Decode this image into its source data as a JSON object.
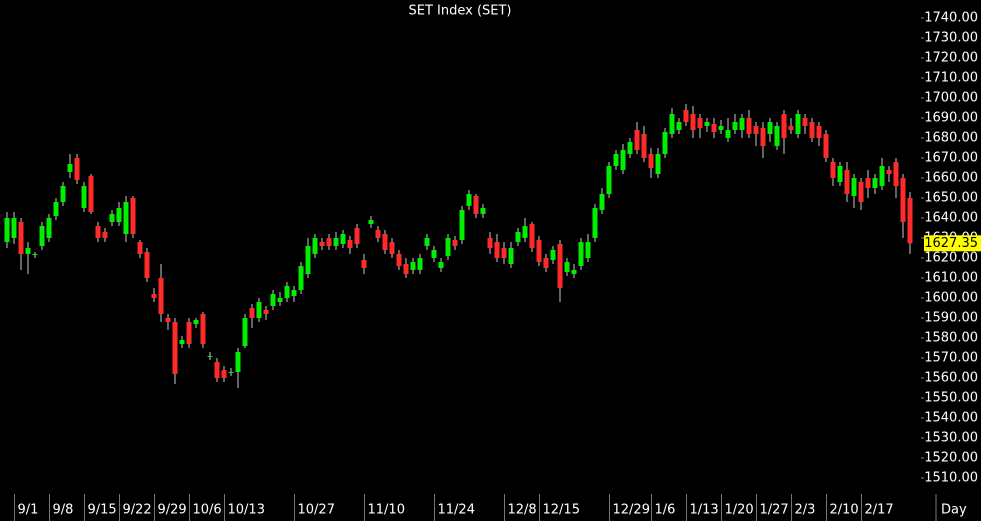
{
  "chart_data": {
    "type": "candlestick",
    "title": "SET Index (SET)",
    "x_axis_label": "Day",
    "up_color": "#00ee00",
    "down_color": "#ff2b2b",
    "wick_color": "#c8c8c8",
    "last_value": 1627.35,
    "categories": [
      null,
      null,
      "9/1",
      null,
      null,
      null,
      null,
      "9/8",
      null,
      null,
      null,
      null,
      "9/15",
      null,
      null,
      null,
      null,
      "9/22",
      null,
      null,
      null,
      null,
      "9/29",
      null,
      null,
      null,
      null,
      "10/6",
      null,
      null,
      null,
      null,
      "10/13",
      null,
      null,
      null,
      null,
      null,
      null,
      null,
      null,
      null,
      "10/27",
      null,
      null,
      null,
      null,
      null,
      null,
      null,
      null,
      null,
      "11/10",
      null,
      null,
      null,
      null,
      null,
      null,
      null,
      null,
      null,
      "11/24",
      null,
      null,
      null,
      null,
      null,
      null,
      null,
      null,
      null,
      "12/8",
      null,
      null,
      null,
      null,
      "12/15",
      null,
      null,
      null,
      null,
      null,
      null,
      null,
      null,
      null,
      "12/29",
      null,
      null,
      null,
      null,
      null,
      "1/6",
      null,
      null,
      null,
      null,
      "1/13",
      null,
      null,
      null,
      null,
      "1/20",
      null,
      null,
      null,
      null,
      "1/27",
      null,
      null,
      null,
      null,
      "2/3",
      null,
      null,
      null,
      null,
      "2/10",
      null,
      null,
      null,
      null,
      "2/17",
      null,
      null,
      null,
      null,
      null,
      null
    ],
    "open": [
      1628,
      1630,
      1638,
      1622,
      1622,
      1626,
      1630,
      1641,
      1648,
      1663,
      1670,
      1645,
      1661,
      1636,
      1633,
      1638,
      1638,
      1632,
      1650,
      1628,
      1623,
      1602,
      1610,
      1590,
      1588,
      1577,
      1588,
      1587,
      1592,
      1571,
      1568,
      1564,
      1563,
      1563,
      1576,
      1595,
      1590,
      1594,
      1596,
      1598,
      1600,
      1601,
      1604,
      1612,
      1622,
      1628,
      1630,
      1626,
      1627,
      1629,
      1635,
      1619,
      1637,
      1634,
      1632,
      1628,
      1622,
      1617,
      1614,
      1614,
      1626,
      1620,
      1615,
      1621,
      1629,
      1629,
      1646,
      1651,
      1642,
      1630,
      1628,
      1625,
      1617,
      1628,
      1630,
      1637,
      1629,
      1620,
      1619,
      1627,
      1613,
      1612,
      1616,
      1620,
      1630,
      1644,
      1652,
      1666,
      1664,
      1672,
      1684,
      1682,
      1672,
      1662,
      1672,
      1682,
      1684,
      1694,
      1692,
      1690,
      1686,
      1687,
      1684,
      1680,
      1684,
      1684,
      1690,
      1686,
      1685,
      1682,
      1676,
      1692,
      1686,
      1682,
      1690,
      1688,
      1686,
      1682,
      1668,
      1658,
      1664,
      1651,
      1658,
      1660,
      1655,
      1656,
      1664,
      1668,
      1660,
      1650
    ],
    "high": [
      1643,
      1643,
      1640,
      1628,
      1623,
      1638,
      1642,
      1650,
      1658,
      1672,
      1672,
      1658,
      1662,
      1638,
      1635,
      1644,
      1648,
      1651,
      1651,
      1629,
      1625,
      1605,
      1617,
      1592,
      1590,
      1581,
      1590,
      1590,
      1593,
      1573,
      1570,
      1566,
      1565,
      1575,
      1592,
      1597,
      1600,
      1596,
      1604,
      1603,
      1608,
      1606,
      1618,
      1630,
      1632,
      1630,
      1632,
      1633,
      1634,
      1631,
      1637,
      1622,
      1641,
      1636,
      1634,
      1630,
      1624,
      1620,
      1620,
      1622,
      1632,
      1626,
      1620,
      1632,
      1631,
      1646,
      1654,
      1652,
      1647,
      1633,
      1632,
      1628,
      1628,
      1635,
      1640,
      1638,
      1631,
      1622,
      1626,
      1629,
      1620,
      1617,
      1630,
      1632,
      1647,
      1655,
      1668,
      1674,
      1677,
      1680,
      1688,
      1686,
      1675,
      1675,
      1685,
      1695,
      1690,
      1697,
      1696,
      1692,
      1690,
      1690,
      1689,
      1690,
      1692,
      1692,
      1694,
      1688,
      1688,
      1690,
      1688,
      1694,
      1690,
      1694,
      1692,
      1690,
      1688,
      1684,
      1670,
      1668,
      1668,
      1662,
      1660,
      1664,
      1662,
      1670,
      1666,
      1670,
      1662,
      1653
    ],
    "low": [
      1625,
      1627,
      1614,
      1612,
      1620,
      1624,
      1628,
      1639,
      1646,
      1660,
      1657,
      1643,
      1642,
      1628,
      1628,
      1636,
      1636,
      1628,
      1630,
      1620,
      1608,
      1598,
      1588,
      1584,
      1557,
      1575,
      1575,
      1585,
      1575,
      1569,
      1558,
      1558,
      1561,
      1555,
      1575,
      1585,
      1588,
      1589,
      1594,
      1596,
      1598,
      1598,
      1602,
      1610,
      1620,
      1624,
      1624,
      1624,
      1625,
      1622,
      1625,
      1612,
      1635,
      1628,
      1622,
      1620,
      1614,
      1610,
      1612,
      1612,
      1624,
      1618,
      1613,
      1619,
      1624,
      1627,
      1644,
      1640,
      1640,
      1622,
      1618,
      1617,
      1615,
      1626,
      1628,
      1623,
      1616,
      1613,
      1617,
      1598,
      1611,
      1610,
      1614,
      1618,
      1628,
      1642,
      1650,
      1664,
      1662,
      1670,
      1672,
      1668,
      1660,
      1660,
      1670,
      1680,
      1682,
      1686,
      1680,
      1680,
      1683,
      1680,
      1682,
      1678,
      1682,
      1680,
      1680,
      1676,
      1670,
      1678,
      1674,
      1672,
      1682,
      1680,
      1682,
      1678,
      1676,
      1668,
      1656,
      1656,
      1648,
      1645,
      1644,
      1650,
      1652,
      1654,
      1658,
      1650,
      1630,
      1622
    ],
    "close": [
      1640,
      1640,
      1622,
      1625,
      1622,
      1636,
      1640,
      1648,
      1656,
      1667,
      1659,
      1656,
      1643,
      1630,
      1630,
      1642,
      1645,
      1648,
      1632,
      1622,
      1610,
      1600,
      1592,
      1588,
      1562,
      1579,
      1577,
      1589,
      1577,
      1571,
      1560,
      1560,
      1563,
      1573,
      1590,
      1590,
      1598,
      1592,
      1602,
      1600,
      1606,
      1604,
      1616,
      1626,
      1630,
      1626,
      1626,
      1630,
      1632,
      1625,
      1627,
      1615,
      1639,
      1630,
      1624,
      1622,
      1616,
      1612,
      1618,
      1620,
      1630,
      1624,
      1618,
      1630,
      1626,
      1644,
      1652,
      1642,
      1645,
      1625,
      1620,
      1620,
      1625,
      1633,
      1636,
      1625,
      1618,
      1615,
      1624,
      1605,
      1618,
      1614,
      1628,
      1628,
      1645,
      1652,
      1666,
      1672,
      1674,
      1678,
      1674,
      1670,
      1665,
      1672,
      1683,
      1692,
      1688,
      1688,
      1684,
      1685,
      1688,
      1683,
      1686,
      1684,
      1688,
      1690,
      1682,
      1682,
      1676,
      1688,
      1686,
      1680,
      1684,
      1692,
      1686,
      1680,
      1680,
      1670,
      1660,
      1666,
      1652,
      1660,
      1648,
      1655,
      1660,
      1666,
      1662,
      1656,
      1638,
      1627.35
    ],
    "ylim": [
      1505,
      1749
    ],
    "yticks": [
      {
        "value": 1510,
        "label": "1510.00"
      },
      {
        "value": 1520,
        "label": "1520.00"
      },
      {
        "value": 1530,
        "label": "1530.00"
      },
      {
        "value": 1540,
        "label": "1540.00"
      },
      {
        "value": 1550,
        "label": "1550.00"
      },
      {
        "value": 1560,
        "label": "1560.00"
      },
      {
        "value": 1570,
        "label": "1570.00"
      },
      {
        "value": 1580,
        "label": "1580.00"
      },
      {
        "value": 1590,
        "label": "1590.00"
      },
      {
        "value": 1600,
        "label": "1600.00"
      },
      {
        "value": 1610,
        "label": "1610.00"
      },
      {
        "value": 1620,
        "label": "1620.00"
      },
      {
        "value": 1630,
        "label": "1630.00"
      },
      {
        "value": 1640,
        "label": "1640.00"
      },
      {
        "value": 1650,
        "label": "1650.00"
      },
      {
        "value": 1660,
        "label": "1660.00"
      },
      {
        "value": 1670,
        "label": "1670.00"
      },
      {
        "value": 1680,
        "label": "1680.00"
      },
      {
        "value": 1690,
        "label": "1690.00"
      },
      {
        "value": 1700,
        "label": "1700.00"
      },
      {
        "value": 1710,
        "label": "1710.00"
      },
      {
        "value": 1720,
        "label": "1720.00"
      },
      {
        "value": 1730,
        "label": "1730.00"
      },
      {
        "value": 1740,
        "label": "1740.00"
      }
    ]
  }
}
